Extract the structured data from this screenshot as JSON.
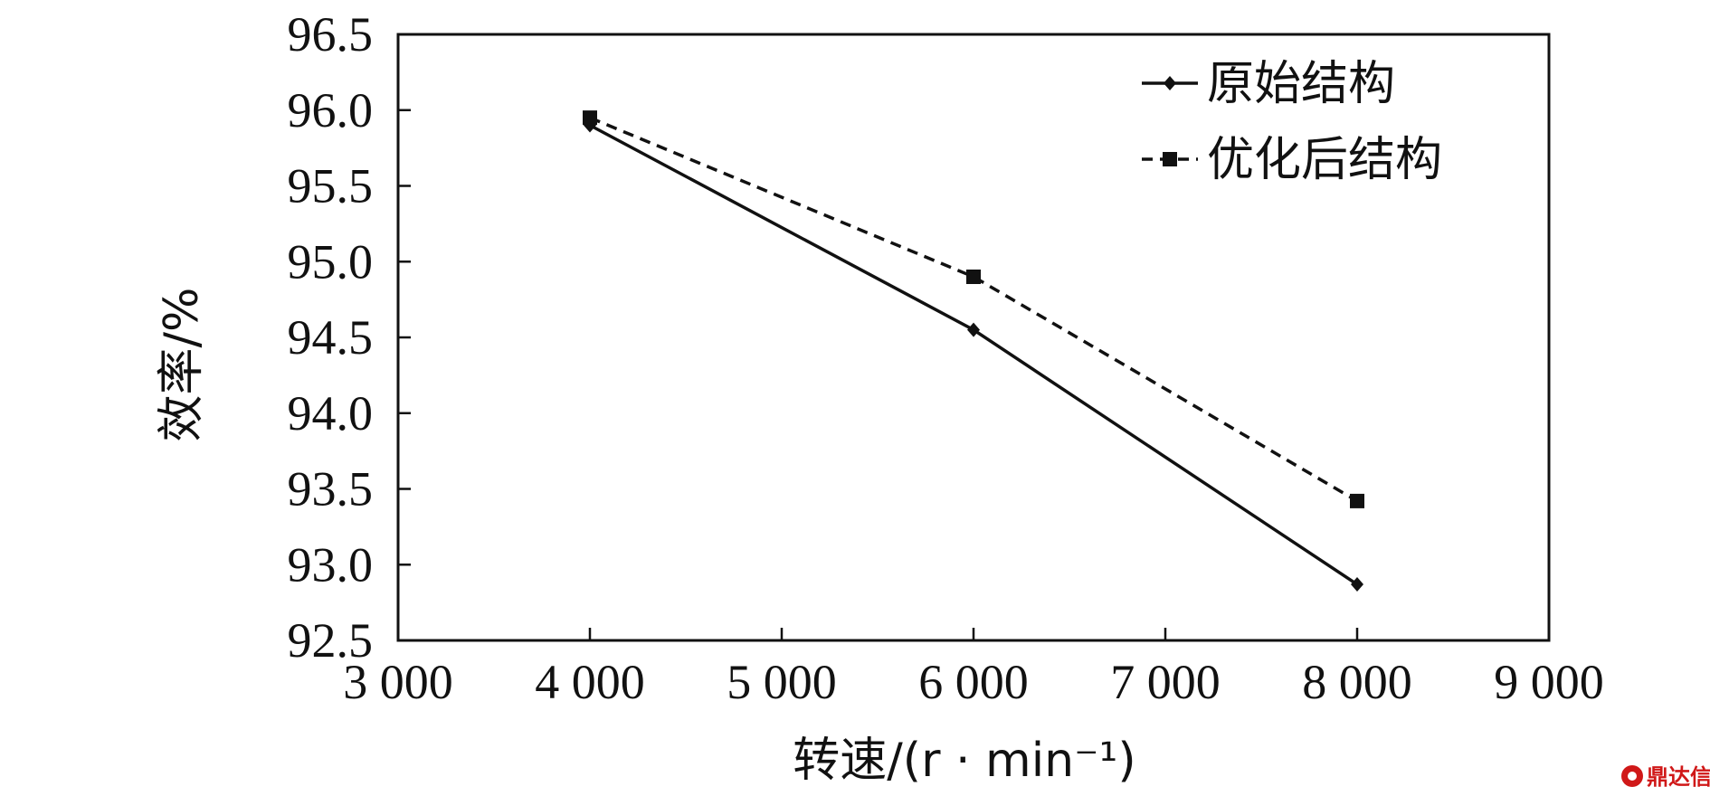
{
  "chart_data": {
    "type": "line",
    "title": "",
    "xlabel": "转速/(r · min⁻¹)",
    "ylabel": "效率/%",
    "xlim": [
      3000,
      9000
    ],
    "ylim": [
      92.5,
      96.5
    ],
    "x_ticks": [
      3000,
      4000,
      5000,
      6000,
      7000,
      8000,
      9000
    ],
    "x_tick_labels": [
      "3 000",
      "4 000",
      "5 000",
      "6 000",
      "7 000",
      "8 000",
      "9 000"
    ],
    "y_ticks": [
      92.5,
      93.0,
      93.5,
      94.0,
      94.5,
      95.0,
      95.5,
      96.0,
      96.5
    ],
    "y_tick_labels": [
      "92.5",
      "93.0",
      "93.5",
      "94.0",
      "94.5",
      "95.0",
      "95.5",
      "96.0",
      "96.5"
    ],
    "grid": false,
    "legend_position": "top-right",
    "series": [
      {
        "name": "原始结构",
        "line_style": "solid",
        "marker": "diamond",
        "color": "#111111",
        "x": [
          4000,
          6000,
          8000
        ],
        "y": [
          95.9,
          94.55,
          92.87
        ]
      },
      {
        "name": "优化后结构",
        "line_style": "dashed",
        "marker": "square",
        "color": "#111111",
        "x": [
          4000,
          6000,
          8000
        ],
        "y": [
          95.95,
          94.9,
          93.42
        ]
      }
    ]
  },
  "watermark": {
    "text": "鼎达信"
  }
}
